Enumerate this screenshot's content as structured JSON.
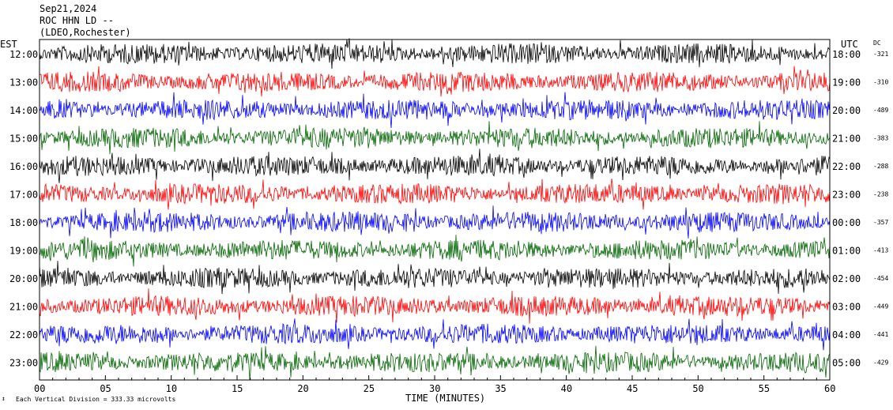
{
  "header": {
    "date": "Sep21,2024",
    "station": "ROC HHN LD --",
    "network": "(LDEO,Rochester)"
  },
  "axes": {
    "left_label": "EST",
    "right_label": "UTC",
    "dc_label": "DC",
    "xlabel": "TIME (MINUTES)"
  },
  "footer": {
    "scale_note": "Each Vertical Division = 333.33 microvolts"
  },
  "colors": {
    "black": "#000000",
    "red": "#ff0000",
    "blue": "#0000ff",
    "green": "#006600"
  },
  "chart_data": {
    "type": "line",
    "x_range": [
      0,
      60
    ],
    "x_ticks": [
      "00",
      "05",
      "10",
      "15",
      "20",
      "25",
      "30",
      "35",
      "40",
      "45",
      "50",
      "55",
      "60"
    ],
    "rows": [
      {
        "est": "12:00",
        "utc": "18:00",
        "dc": "-321",
        "color": "black"
      },
      {
        "est": "13:00",
        "utc": "19:00",
        "dc": "-310",
        "color": "red"
      },
      {
        "est": "14:00",
        "utc": "20:00",
        "dc": "-489",
        "color": "blue"
      },
      {
        "est": "15:00",
        "utc": "21:00",
        "dc": "-383",
        "color": "green"
      },
      {
        "est": "16:00",
        "utc": "22:00",
        "dc": "-288",
        "color": "black"
      },
      {
        "est": "17:00",
        "utc": "23:00",
        "dc": "-238",
        "color": "red"
      },
      {
        "est": "18:00",
        "utc": "00:00",
        "dc": "-357",
        "color": "blue"
      },
      {
        "est": "19:00",
        "utc": "01:00",
        "dc": "-413",
        "color": "green"
      },
      {
        "est": "20:00",
        "utc": "02:00",
        "dc": "-454",
        "color": "black"
      },
      {
        "est": "21:00",
        "utc": "03:00",
        "dc": "-449",
        "color": "red"
      },
      {
        "est": "22:00",
        "utc": "04:00",
        "dc": "-441",
        "color": "blue"
      },
      {
        "est": "23:00",
        "utc": "05:00",
        "dc": "-429",
        "color": "green"
      }
    ]
  }
}
